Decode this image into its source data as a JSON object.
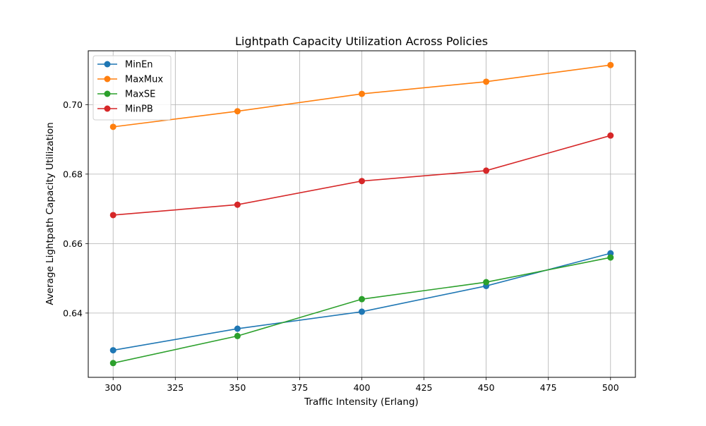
{
  "chart_data": {
    "type": "line",
    "title": "Lightpath Capacity Utilization Across Policies",
    "xlabel": "Traffic Intensity (Erlang)",
    "ylabel": "Average Lightpath Capacity Utilization",
    "x": [
      300,
      350,
      400,
      450,
      500
    ],
    "xlim": [
      290,
      510
    ],
    "ylim": [
      0.6215,
      0.7155
    ],
    "xticks": [
      300,
      325,
      350,
      375,
      400,
      425,
      450,
      475,
      500
    ],
    "yticks": [
      0.64,
      0.66,
      0.68,
      0.7
    ],
    "ytick_labels": [
      "0.64",
      "0.66",
      "0.68",
      "0.70"
    ],
    "grid": true,
    "legend_position": "top-left",
    "series": [
      {
        "name": "MinEn",
        "color": "#1f77b4",
        "values": [
          0.6293,
          0.6355,
          0.6404,
          0.6478,
          0.6572
        ]
      },
      {
        "name": "MaxMux",
        "color": "#ff7f0e",
        "values": [
          0.6936,
          0.6981,
          0.7031,
          0.7066,
          0.7114
        ]
      },
      {
        "name": "MaxSE",
        "color": "#2ca02c",
        "values": [
          0.6256,
          0.6334,
          0.644,
          0.6489,
          0.656
        ]
      },
      {
        "name": "MinPB",
        "color": "#d62728",
        "values": [
          0.6682,
          0.6712,
          0.678,
          0.681,
          0.6911
        ]
      }
    ]
  }
}
